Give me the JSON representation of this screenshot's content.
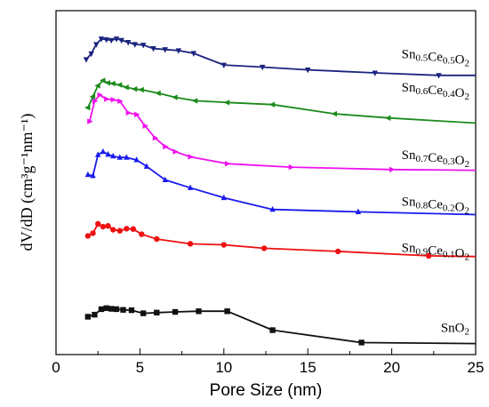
{
  "chart_data": {
    "type": "line",
    "title": "",
    "xlabel": "Pore Size (nm)",
    "ylabel": "dV/dD (cm³g⁻¹nm⁻¹)",
    "xlim": [
      0,
      25
    ],
    "xticks": [
      "0",
      "5",
      "10",
      "15",
      "20",
      "25"
    ],
    "yticks_shown": false,
    "legend": "inline labels at right end of each curve",
    "series": [
      {
        "name": "Sn0.5Ce0.5O2",
        "name_parts": {
          "sn": "Sn",
          "x": "0.5",
          "ce": "Ce",
          "y": "0.5",
          "o": "O",
          "two": "2"
        },
        "color": "#1a237e",
        "marker": "triangle-down",
        "x": [
          1.8,
          2.1,
          2.4,
          2.7,
          3.0,
          3.3,
          3.6,
          3.9,
          4.3,
          4.7,
          5.2,
          5.8,
          6.5,
          7.3,
          8.2,
          10.0,
          12.3,
          15.0,
          19.0,
          22.8,
          25.0
        ],
        "y": [
          0.858,
          0.875,
          0.902,
          0.918,
          0.916,
          0.914,
          0.918,
          0.914,
          0.908,
          0.902,
          0.9,
          0.89,
          0.887,
          0.884,
          0.876,
          0.842,
          0.836,
          0.828,
          0.819,
          0.812,
          0.812
        ]
      },
      {
        "name": "Sn0.6Ce0.4O2",
        "name_parts": {
          "sn": "Sn",
          "x": "0.6",
          "ce": "Ce",
          "y": "0.4",
          "o": "O",
          "two": "2"
        },
        "color": "#1b8a1b",
        "marker": "triangle-left",
        "x": [
          1.9,
          2.2,
          2.5,
          2.8,
          3.1,
          3.4,
          3.8,
          4.2,
          4.7,
          5.1,
          6.1,
          7.1,
          8.3,
          10.2,
          12.9,
          16.6,
          19.8,
          25.0
        ],
        "y": [
          0.718,
          0.75,
          0.782,
          0.797,
          0.79,
          0.788,
          0.784,
          0.777,
          0.772,
          0.77,
          0.76,
          0.748,
          0.738,
          0.733,
          0.727,
          0.7,
          0.688,
          0.673
        ]
      },
      {
        "name": "Sn0.7Ce0.3O2",
        "name_parts": {
          "sn": "Sn",
          "x": "0.7",
          "ce": "Ce",
          "y": "0.3",
          "o": "O",
          "two": "2"
        },
        "color": "#ee11ee",
        "marker": "triangle-right",
        "x": [
          2.0,
          2.3,
          2.6,
          3.0,
          3.4,
          3.8,
          4.3,
          4.8,
          5.3,
          5.9,
          6.5,
          7.1,
          8.0,
          10.2,
          14.0,
          20.0,
          25.0
        ],
        "y": [
          0.678,
          0.737,
          0.755,
          0.743,
          0.741,
          0.737,
          0.703,
          0.698,
          0.665,
          0.63,
          0.605,
          0.59,
          0.575,
          0.555,
          0.545,
          0.538,
          0.536
        ]
      },
      {
        "name": "Sn0.8Ce0.2O2",
        "name_parts": {
          "sn": "Sn",
          "x": "0.8",
          "ce": "Ce",
          "y": "0.2",
          "o": "O",
          "two": "2"
        },
        "color": "#1a1aee",
        "marker": "triangle-up",
        "x": [
          1.9,
          2.2,
          2.5,
          2.8,
          3.1,
          3.4,
          3.8,
          4.2,
          4.8,
          5.4,
          6.5,
          8.0,
          10.0,
          12.9,
          18.0,
          25.0
        ],
        "y": [
          0.523,
          0.52,
          0.581,
          0.59,
          0.582,
          0.577,
          0.573,
          0.573,
          0.566,
          0.547,
          0.508,
          0.485,
          0.456,
          0.422,
          0.415,
          0.407
        ]
      },
      {
        "name": "Sn0.9Ce0.1O2",
        "name_parts": {
          "sn": "Sn",
          "x": "0.9",
          "ce": "Ce",
          "y": "0.1",
          "o": "O",
          "two": "2"
        },
        "color": "#ee1111",
        "marker": "circle",
        "x": [
          1.9,
          2.2,
          2.5,
          2.8,
          3.1,
          3.4,
          3.8,
          4.2,
          4.6,
          5.1,
          6.0,
          8.0,
          10.0,
          12.4,
          16.8,
          22.2,
          25.0
        ],
        "y": [
          0.345,
          0.353,
          0.38,
          0.372,
          0.374,
          0.363,
          0.36,
          0.366,
          0.365,
          0.35,
          0.336,
          0.322,
          0.319,
          0.309,
          0.3,
          0.287,
          0.285
        ]
      },
      {
        "name": "SnO2",
        "name_parts": {
          "sn": "Sn",
          "x": "",
          "ce": "",
          "y": "",
          "o": "O",
          "two": "2"
        },
        "color": "#111111",
        "marker": "square",
        "x": [
          1.9,
          2.3,
          2.7,
          3.0,
          3.3,
          3.6,
          4.0,
          4.5,
          5.2,
          6.0,
          7.1,
          8.5,
          10.2,
          12.9,
          18.2,
          25.0
        ],
        "y": [
          0.11,
          0.116,
          0.132,
          0.135,
          0.133,
          0.132,
          0.13,
          0.129,
          0.12,
          0.122,
          0.124,
          0.126,
          0.126,
          0.071,
          0.035,
          0.032
        ]
      }
    ],
    "label_positions_y": [
      0.862,
      0.765,
      0.568,
      0.433,
      0.298,
      0.066
    ]
  }
}
